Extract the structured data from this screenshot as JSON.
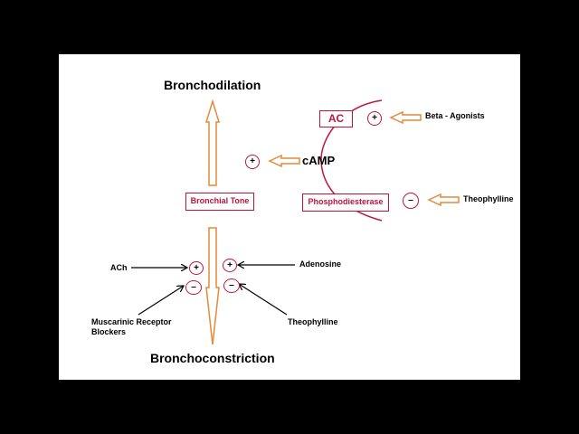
{
  "colors": {
    "arrow_orange": "#e38a3c",
    "accent_red": "#c0143c",
    "background": "#000000",
    "slide": "#ffffff"
  },
  "diagram": {
    "bronchodilation": "Bronchodilation",
    "bronchoconstriction": "Bronchoconstriction",
    "bronchial_tone": "Bronchial Tone",
    "ac": "AC",
    "camp": "cAMP",
    "phosphodiesterase": "Phosphodiesterase",
    "beta_agonists": "Beta - Agonists",
    "theophylline_pde": "Theophylline",
    "ach": "ACh",
    "adenosine": "Adenosine",
    "muscarinic_line1": "Muscarinic Receptor",
    "muscarinic_line2": "Blockers",
    "theophylline_lower": "Theophylline",
    "plus": "+",
    "minus": "–"
  }
}
